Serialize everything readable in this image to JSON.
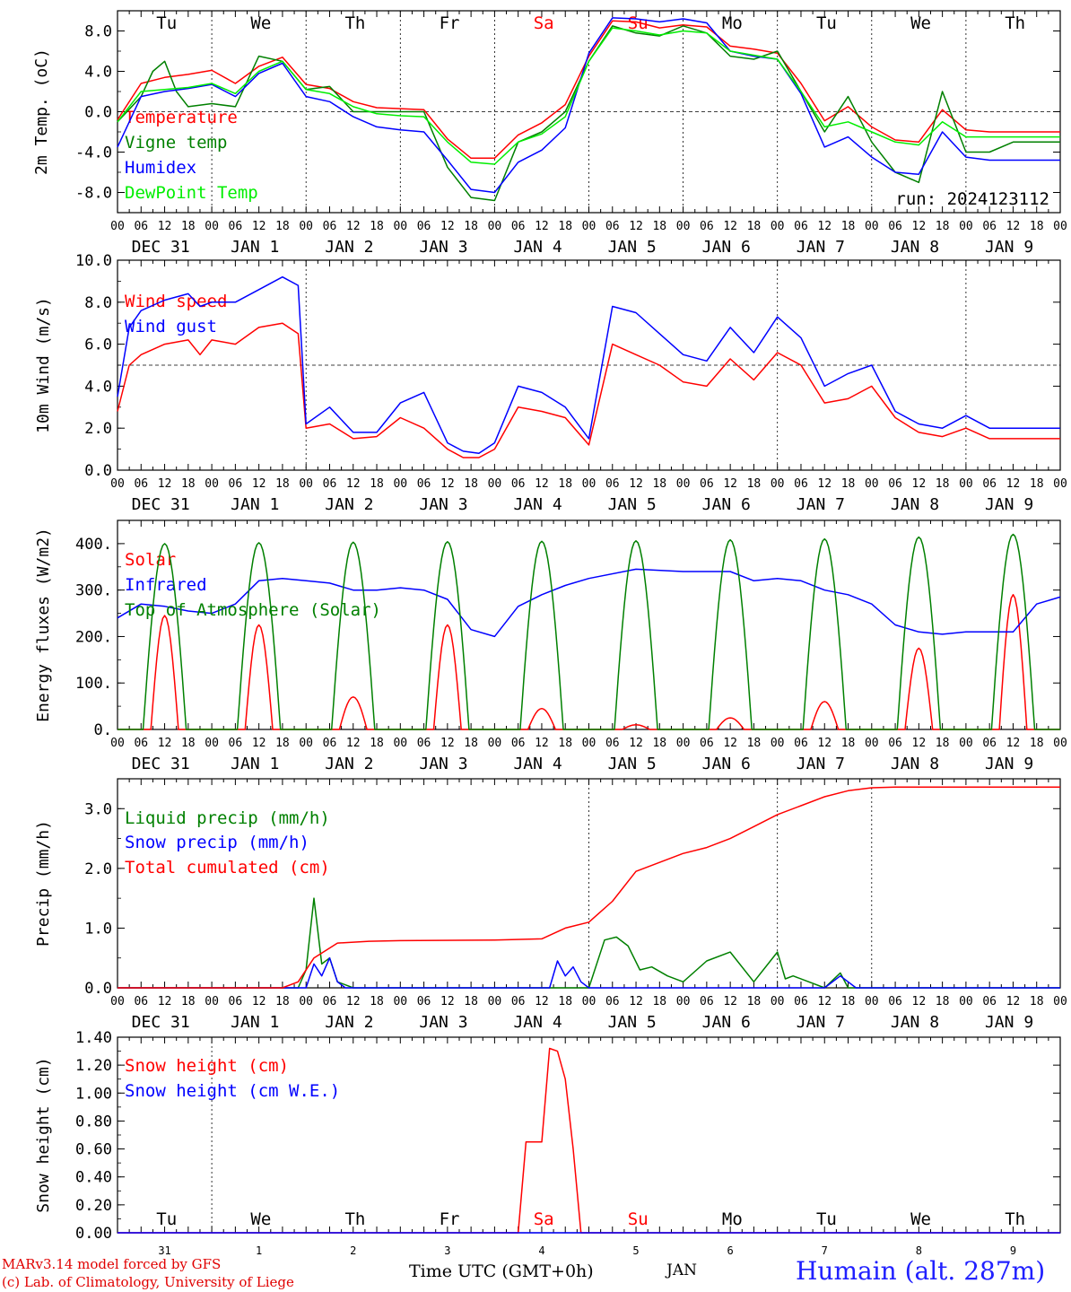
{
  "run_label": "run: 2024123112",
  "footer": {
    "credit_line1": "MARv3.14 model forced by GFS",
    "credit_line2": "(c) Lab. of Climatology, University of Liege",
    "xlabel": "Time UTC (GMT+0h)",
    "month": "JAN",
    "station": "Humain (alt. 287m)"
  },
  "time_axis": {
    "hour_ticks": [
      "00",
      "06",
      "12",
      "18"
    ],
    "day_labels": [
      "DEC 31",
      "JAN  1",
      "JAN  2",
      "JAN  3",
      "JAN  4",
      "JAN  5",
      "JAN  6",
      "JAN  7",
      "JAN  8",
      "JAN  9"
    ],
    "weekdays": [
      {
        "label": "Tu",
        "color": "#000000"
      },
      {
        "label": "We",
        "color": "#000000"
      },
      {
        "label": "Th",
        "color": "#000000"
      },
      {
        "label": "Fr",
        "color": "#000000"
      },
      {
        "label": "Sa",
        "color": "#ff0000"
      },
      {
        "label": "Su",
        "color": "#ff0000"
      },
      {
        "label": "Mo",
        "color": "#000000"
      },
      {
        "label": "Tu",
        "color": "#000000"
      },
      {
        "label": "We",
        "color": "#000000"
      },
      {
        "label": "Th",
        "color": "#000000"
      }
    ],
    "day_numbers": [
      "31",
      "1",
      "2",
      "3",
      "4",
      "5",
      "6",
      "7",
      "8",
      "9"
    ]
  },
  "chart_data": [
    {
      "type": "line",
      "ylabel": "2m Temp. (oC)",
      "ylim": [
        -10,
        10
      ],
      "yticks": [
        "8.0",
        "4.0",
        "0.0",
        "-4.0",
        "-8.0"
      ],
      "reference_line": 0,
      "x_unit": "hours since Dec 31 00 UTC",
      "series": [
        {
          "name": "Temperature",
          "color": "#ff0000",
          "x": [
            0,
            6,
            12,
            18,
            24,
            30,
            36,
            42,
            48,
            54,
            60,
            66,
            72,
            78,
            84,
            90,
            96,
            102,
            108,
            114,
            120,
            126,
            132,
            138,
            144,
            150,
            156,
            162,
            168,
            174,
            180,
            186,
            192,
            198,
            204,
            210,
            216,
            222,
            228,
            234,
            240
          ],
          "values": [
            -0.8,
            2.8,
            3.4,
            3.7,
            4.1,
            2.8,
            4.5,
            5.4,
            2.7,
            2.3,
            1.0,
            0.4,
            0.3,
            0.2,
            -2.7,
            -4.6,
            -4.6,
            -2.3,
            -1.1,
            0.7,
            5.5,
            9.0,
            8.9,
            8.3,
            8.6,
            8.4,
            6.5,
            6.2,
            5.8,
            2.8,
            -0.9,
            0.5,
            -1.5,
            -2.8,
            -3.0,
            0.2,
            -1.8,
            -2.0,
            -2.0,
            -2.0,
            -2.0
          ]
        },
        {
          "name": "Vigne temp",
          "color": "#008000",
          "x": [
            0,
            6,
            9,
            12,
            15,
            18,
            24,
            30,
            36,
            42,
            48,
            54,
            60,
            66,
            72,
            78,
            84,
            90,
            96,
            102,
            108,
            114,
            120,
            126,
            132,
            138,
            144,
            150,
            156,
            162,
            168,
            174,
            180,
            186,
            192,
            198,
            204,
            210,
            216,
            222,
            228,
            234,
            240
          ],
          "values": [
            -1.0,
            1.5,
            4.0,
            5.0,
            2.0,
            0.5,
            0.8,
            0.5,
            5.5,
            5.0,
            2.2,
            2.5,
            0.0,
            0.0,
            0.0,
            0.0,
            -5.5,
            -8.5,
            -8.8,
            -3.0,
            -2.0,
            0.0,
            5.0,
            8.5,
            7.8,
            7.5,
            8.5,
            7.8,
            5.5,
            5.2,
            6.0,
            2.0,
            -2.0,
            1.5,
            -3.0,
            -6.0,
            -7.0,
            2.0,
            -4.0,
            -4.0,
            -3.0,
            -3.0,
            -3.0
          ]
        },
        {
          "name": "Humidex",
          "color": "#0000ff",
          "x": [
            0,
            6,
            12,
            18,
            24,
            30,
            36,
            42,
            48,
            54,
            60,
            66,
            72,
            78,
            84,
            90,
            96,
            102,
            108,
            114,
            120,
            126,
            132,
            138,
            144,
            150,
            156,
            162,
            168,
            174,
            180,
            186,
            192,
            198,
            204,
            210,
            216,
            222,
            228,
            234,
            240
          ],
          "values": [
            -3.5,
            1.5,
            2.0,
            2.3,
            2.7,
            1.5,
            3.8,
            4.8,
            1.5,
            1.0,
            -0.5,
            -1.5,
            -1.8,
            -2.0,
            -4.8,
            -7.7,
            -8.0,
            -5.0,
            -3.8,
            -1.6,
            5.8,
            9.3,
            9.2,
            8.9,
            9.2,
            8.8,
            6.0,
            5.5,
            5.2,
            1.8,
            -3.5,
            -2.5,
            -4.5,
            -6.0,
            -6.2,
            -2.0,
            -4.5,
            -4.8,
            -4.8,
            -4.8,
            -4.8
          ]
        },
        {
          "name": "DewPoint Temp",
          "color": "#00ee00",
          "x": [
            0,
            6,
            12,
            18,
            24,
            30,
            36,
            42,
            48,
            54,
            60,
            66,
            72,
            78,
            84,
            90,
            96,
            102,
            108,
            114,
            120,
            126,
            132,
            138,
            144,
            150,
            156,
            162,
            168,
            174,
            180,
            186,
            192,
            198,
            204,
            210,
            216,
            222,
            228,
            234,
            240
          ],
          "values": [
            -1.0,
            2.0,
            2.2,
            2.4,
            2.8,
            1.8,
            4.0,
            5.0,
            2.2,
            1.8,
            0.5,
            -0.2,
            -0.4,
            -0.5,
            -3.0,
            -5.0,
            -5.2,
            -3.0,
            -2.2,
            -0.5,
            5.0,
            8.3,
            8.0,
            7.6,
            8.0,
            7.8,
            6.0,
            5.6,
            5.2,
            2.0,
            -1.5,
            -1.0,
            -2.0,
            -3.0,
            -3.3,
            -1.0,
            -2.5,
            -2.5,
            -2.5,
            -2.5,
            -2.5
          ]
        }
      ]
    },
    {
      "type": "line",
      "ylabel": "10m Wind (m/s)",
      "ylim": [
        0,
        10
      ],
      "yticks": [
        "10.0",
        "8.0",
        "6.0",
        "4.0",
        "2.0",
        "0.0"
      ],
      "reference_line": 5,
      "series": [
        {
          "name": "Wind speed",
          "color": "#ff0000",
          "x": [
            0,
            3,
            6,
            12,
            18,
            21,
            24,
            30,
            36,
            42,
            46,
            48,
            54,
            60,
            66,
            72,
            78,
            84,
            88,
            92,
            96,
            102,
            108,
            114,
            120,
            126,
            132,
            138,
            144,
            150,
            156,
            162,
            168,
            174,
            180,
            186,
            192,
            198,
            204,
            210,
            216,
            222,
            228,
            234,
            240
          ],
          "values": [
            2.8,
            5.0,
            5.5,
            6.0,
            6.2,
            5.5,
            6.2,
            6.0,
            6.8,
            7.0,
            6.5,
            2.0,
            2.2,
            1.5,
            1.6,
            2.5,
            2.0,
            1.0,
            0.6,
            0.6,
            1.0,
            3.0,
            2.8,
            2.5,
            1.2,
            6.0,
            5.5,
            5.0,
            4.2,
            4.0,
            5.3,
            4.3,
            5.6,
            5.0,
            3.2,
            3.4,
            4.0,
            2.5,
            1.8,
            1.6,
            2.0,
            1.5,
            1.5,
            1.5,
            1.5
          ]
        },
        {
          "name": "Wind gust",
          "color": "#0000ff",
          "x": [
            0,
            3,
            6,
            12,
            18,
            21,
            24,
            30,
            36,
            42,
            46,
            48,
            54,
            60,
            66,
            72,
            78,
            84,
            88,
            92,
            96,
            102,
            108,
            114,
            120,
            126,
            132,
            138,
            144,
            150,
            156,
            162,
            168,
            174,
            180,
            186,
            192,
            198,
            204,
            210,
            216,
            222,
            228,
            234,
            240
          ],
          "values": [
            3.5,
            6.8,
            7.6,
            8.1,
            8.4,
            7.8,
            8.0,
            8.0,
            8.6,
            9.2,
            8.8,
            2.2,
            3.0,
            1.8,
            1.8,
            3.2,
            3.7,
            1.3,
            0.9,
            0.8,
            1.3,
            4.0,
            3.7,
            3.0,
            1.5,
            7.8,
            7.5,
            6.5,
            5.5,
            5.2,
            6.8,
            5.6,
            7.3,
            6.3,
            4.0,
            4.6,
            5.0,
            2.8,
            2.2,
            2.0,
            2.6,
            2.0,
            2.0,
            2.0,
            2.0
          ]
        }
      ]
    },
    {
      "type": "line",
      "ylabel": "Energy fluxes (W/m2)",
      "ylim": [
        0,
        450
      ],
      "yticks": [
        "400.",
        "300.",
        "200.",
        "100.",
        "0."
      ],
      "series": [
        {
          "name": "Solar",
          "color": "#ff0000",
          "peaks": [
            245,
            225,
            70,
            225,
            45,
            10,
            25,
            60,
            175,
            290
          ]
        },
        {
          "name": "Infrared",
          "color": "#0000ff",
          "x": [
            0,
            6,
            12,
            18,
            24,
            30,
            36,
            42,
            48,
            54,
            60,
            66,
            72,
            78,
            84,
            90,
            96,
            102,
            108,
            114,
            120,
            132,
            144,
            156,
            162,
            168,
            174,
            180,
            186,
            192,
            198,
            204,
            210,
            216,
            222,
            228,
            234,
            240
          ],
          "values": [
            240,
            270,
            265,
            255,
            250,
            270,
            320,
            325,
            320,
            315,
            300,
            300,
            305,
            300,
            280,
            215,
            200,
            265,
            290,
            310,
            325,
            345,
            340,
            340,
            320,
            325,
            320,
            300,
            290,
            270,
            225,
            210,
            205,
            210,
            210,
            210,
            270,
            285
          ]
        },
        {
          "name": "Top of Atmosphere (Solar)",
          "color": "#008000",
          "peaks": [
            400,
            402,
            403,
            404,
            405,
            406,
            408,
            410,
            414,
            420
          ]
        }
      ]
    },
    {
      "type": "line",
      "ylabel": "Precip (mm/h)",
      "ylim": [
        0,
        3.5
      ],
      "yticks": [
        "3.0",
        "2.0",
        "1.0",
        "0.0"
      ],
      "series": [
        {
          "name": "Liquid precip (mm/h)",
          "color": "#008000",
          "x": [
            0,
            40,
            46,
            48,
            50,
            52,
            54,
            56,
            60,
            64,
            120,
            124,
            127,
            130,
            133,
            136,
            140,
            144,
            150,
            156,
            162,
            168,
            170,
            172,
            176,
            180,
            184,
            186,
            190,
            200,
            240
          ],
          "values": [
            0,
            0,
            0,
            0.3,
            1.5,
            0.4,
            0.5,
            0.1,
            0,
            0,
            0,
            0.8,
            0.85,
            0.7,
            0.3,
            0.35,
            0.2,
            0.1,
            0.45,
            0.6,
            0.1,
            0.6,
            0.15,
            0.2,
            0.1,
            0,
            0.25,
            0,
            0,
            0,
            0
          ]
        },
        {
          "name": "Snow precip (mm/h)",
          "color": "#0000ff",
          "x": [
            0,
            48,
            50,
            52,
            54,
            56,
            58,
            62,
            110,
            112,
            114,
            116,
            118,
            120,
            180,
            184,
            188,
            240
          ],
          "values": [
            0,
            0,
            0.4,
            0.2,
            0.5,
            0.1,
            0,
            0,
            0,
            0.45,
            0.2,
            0.35,
            0.1,
            0,
            0,
            0.2,
            0,
            0
          ]
        },
        {
          "name": "Total cumulated (cm)",
          "color": "#ff0000",
          "x": [
            0,
            42,
            46,
            50,
            56,
            64,
            72,
            96,
            108,
            114,
            120,
            126,
            132,
            138,
            144,
            150,
            156,
            162,
            168,
            174,
            180,
            186,
            192,
            198,
            204,
            210,
            216,
            222,
            228,
            234,
            240
          ],
          "values": [
            0,
            0,
            0.1,
            0.5,
            0.75,
            0.78,
            0.79,
            0.8,
            0.82,
            1.0,
            1.1,
            1.45,
            1.95,
            2.1,
            2.25,
            2.35,
            2.5,
            2.7,
            2.9,
            3.05,
            3.2,
            3.3,
            3.35,
            3.36,
            3.36,
            3.36,
            3.36,
            3.36,
            3.36,
            3.36,
            3.36
          ]
        }
      ]
    },
    {
      "type": "line",
      "ylabel": "Snow height (cm)",
      "ylim": [
        0,
        1.4
      ],
      "yticks": [
        "1.40",
        "1.20",
        "1.00",
        "0.80",
        "0.60",
        "0.40",
        "0.20",
        "0.00"
      ],
      "series": [
        {
          "name": "Snow height (cm)",
          "color": "#ff0000",
          "x": [
            0,
            102,
            104,
            108,
            110,
            112,
            114,
            116,
            118,
            120,
            122,
            240
          ],
          "values": [
            0,
            0,
            0.65,
            0.65,
            1.32,
            1.3,
            1.1,
            0.6,
            0,
            0,
            0,
            0
          ]
        },
        {
          "name": "Snow height (cm W.E.)",
          "color": "#0000ff",
          "x": [
            0,
            240
          ],
          "values": [
            0,
            0
          ]
        }
      ]
    }
  ]
}
